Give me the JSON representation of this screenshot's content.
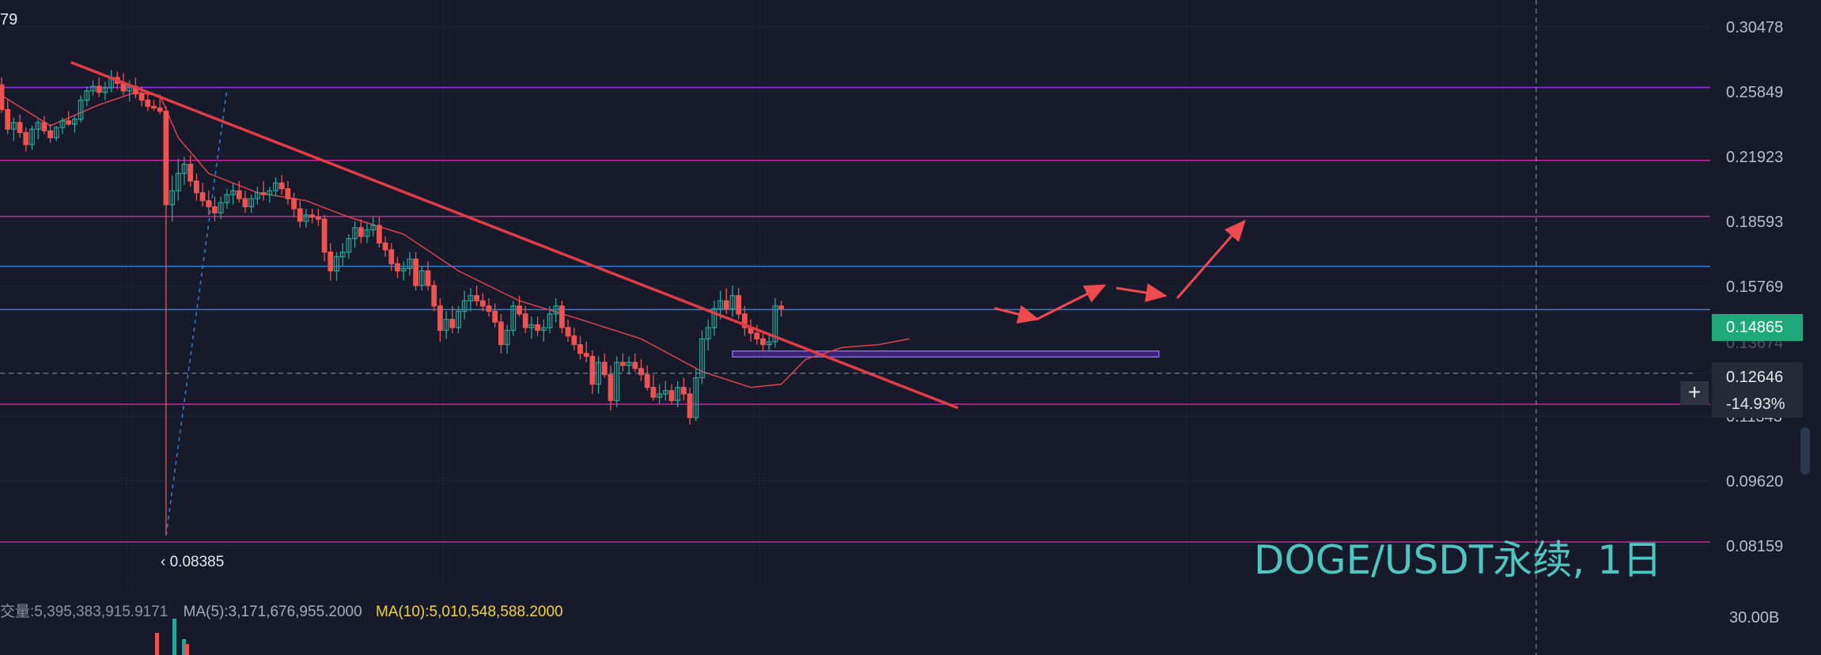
{
  "pair_title": "DOGE/USDT永续, 1日",
  "top_left_fragment": "79",
  "price_axis": {
    "labels": [
      "0.30478",
      "0.25849",
      "0.21923",
      "0.18593",
      "0.15769",
      "0.14865",
      "0.12646",
      "0.11343",
      "0.09620",
      "0.08159"
    ],
    "current_price": "0.14865",
    "cursor_price": "0.12646",
    "cursor_change": "-14.93%",
    "partial_hidden_label": "0.13674"
  },
  "min_marker": "0.08385",
  "volume": {
    "total_label": "交量:5,395,383,915.9171",
    "ma5_label": "MA(5):3,171,676,955.2000",
    "ma10_label": "MA(10):5,010,548,588.2000",
    "axis_label": "30.00B"
  },
  "colors": {
    "background": "#161a2b",
    "bull": "#26a69a",
    "bear": "#ef5350",
    "trendline": "#e23b45",
    "ma_line": "#e0424d",
    "current_tag": "#1fa97a",
    "watermark": "#4ec6bf",
    "level_purple": "#8e33e6",
    "level_magenta": "#c9249a",
    "level_blue": "#2f7fd6"
  },
  "chart_data": {
    "type": "candlestick",
    "title": "DOGE/USDT永续, 1日",
    "ylim": [
      0.0738,
      0.3262
    ],
    "scale": "log",
    "grid": true,
    "horizontal_levels": [
      {
        "value": 0.2613,
        "color": "purple"
      },
      {
        "value": 0.2171,
        "color": "magenta"
      },
      {
        "value": 0.1883,
        "color": "magenta"
      },
      {
        "value": 0.1659,
        "color": "blue"
      },
      {
        "value": 0.14865,
        "color": "blue"
      },
      {
        "value": 0.1169,
        "color": "magenta"
      },
      {
        "value": 0.0824,
        "color": "magenta"
      }
    ],
    "support_zone": {
      "low": 0.1318,
      "high": 0.1338,
      "x_start": 120,
      "x_end": 190
    },
    "trendline": {
      "x1": 1,
      "y1": 0.2785,
      "x2": 157,
      "y2": 0.1158
    },
    "fib_line": {
      "x1": 27,
      "y1": 0.0838,
      "x2": 37,
      "y2": 0.26
    },
    "min_marker": {
      "x": 27,
      "value": 0.08385
    },
    "projection_arrows": [
      {
        "x1": 163,
        "y1": 0.1492,
        "x2": 170,
        "y2": 0.1451
      },
      {
        "x1": 170,
        "y1": 0.1451,
        "x2": 181,
        "y2": 0.158
      },
      {
        "x1": 183,
        "y1": 0.157,
        "x2": 191,
        "y2": 0.154
      },
      {
        "x1": 193,
        "y1": 0.153,
        "x2": 204,
        "y2": 0.1859
      }
    ],
    "ohlc": [
      [
        0.263,
        0.268,
        0.245,
        0.247
      ],
      [
        0.247,
        0.253,
        0.232,
        0.235
      ],
      [
        0.235,
        0.242,
        0.228,
        0.239
      ],
      [
        0.239,
        0.244,
        0.23,
        0.233
      ],
      [
        0.233,
        0.236,
        0.222,
        0.226
      ],
      [
        0.226,
        0.237,
        0.223,
        0.235
      ],
      [
        0.235,
        0.241,
        0.229,
        0.239
      ],
      [
        0.239,
        0.243,
        0.232,
        0.234
      ],
      [
        0.234,
        0.238,
        0.227,
        0.23
      ],
      [
        0.23,
        0.237,
        0.228,
        0.236
      ],
      [
        0.236,
        0.242,
        0.232,
        0.24
      ],
      [
        0.24,
        0.246,
        0.237,
        0.238
      ],
      [
        0.238,
        0.243,
        0.233,
        0.241
      ],
      [
        0.241,
        0.256,
        0.239,
        0.253
      ],
      [
        0.253,
        0.262,
        0.249,
        0.259
      ],
      [
        0.259,
        0.266,
        0.256,
        0.262
      ],
      [
        0.262,
        0.268,
        0.255,
        0.258
      ],
      [
        0.258,
        0.265,
        0.253,
        0.261
      ],
      [
        0.261,
        0.273,
        0.258,
        0.268
      ],
      [
        0.268,
        0.272,
        0.26,
        0.264
      ],
      [
        0.264,
        0.271,
        0.256,
        0.259
      ],
      [
        0.259,
        0.266,
        0.252,
        0.262
      ],
      [
        0.262,
        0.268,
        0.254,
        0.257
      ],
      [
        0.257,
        0.262,
        0.249,
        0.253
      ],
      [
        0.253,
        0.259,
        0.246,
        0.249
      ],
      [
        0.249,
        0.253,
        0.246,
        0.248
      ],
      [
        0.248,
        0.255,
        0.244,
        0.246
      ],
      [
        0.246,
        0.249,
        0.0838,
        0.194
      ],
      [
        0.194,
        0.209,
        0.186,
        0.201
      ],
      [
        0.201,
        0.218,
        0.196,
        0.21
      ],
      [
        0.21,
        0.219,
        0.204,
        0.215
      ],
      [
        0.215,
        0.22,
        0.203,
        0.206
      ],
      [
        0.206,
        0.21,
        0.196,
        0.2
      ],
      [
        0.2,
        0.205,
        0.193,
        0.196
      ],
      [
        0.196,
        0.201,
        0.189,
        0.193
      ],
      [
        0.193,
        0.198,
        0.186,
        0.19
      ],
      [
        0.19,
        0.198,
        0.187,
        0.195
      ],
      [
        0.195,
        0.202,
        0.192,
        0.199
      ],
      [
        0.199,
        0.205,
        0.194,
        0.201
      ],
      [
        0.201,
        0.206,
        0.195,
        0.197
      ],
      [
        0.197,
        0.201,
        0.19,
        0.193
      ],
      [
        0.193,
        0.199,
        0.19,
        0.197
      ],
      [
        0.197,
        0.203,
        0.194,
        0.2
      ],
      [
        0.2,
        0.206,
        0.196,
        0.199
      ],
      [
        0.199,
        0.203,
        0.195,
        0.201
      ],
      [
        0.201,
        0.208,
        0.198,
        0.205
      ],
      [
        0.205,
        0.209,
        0.199,
        0.202
      ],
      [
        0.202,
        0.206,
        0.194,
        0.197
      ],
      [
        0.197,
        0.2,
        0.188,
        0.192
      ],
      [
        0.192,
        0.196,
        0.183,
        0.186
      ],
      [
        0.186,
        0.192,
        0.183,
        0.189
      ],
      [
        0.189,
        0.192,
        0.185,
        0.188
      ],
      [
        0.188,
        0.192,
        0.184,
        0.187
      ],
      [
        0.187,
        0.189,
        0.168,
        0.172
      ],
      [
        0.172,
        0.176,
        0.16,
        0.164
      ],
      [
        0.164,
        0.172,
        0.16,
        0.17
      ],
      [
        0.17,
        0.176,
        0.166,
        0.172
      ],
      [
        0.172,
        0.18,
        0.169,
        0.178
      ],
      [
        0.178,
        0.186,
        0.174,
        0.183
      ],
      [
        0.183,
        0.187,
        0.176,
        0.179
      ],
      [
        0.179,
        0.185,
        0.176,
        0.182
      ],
      [
        0.182,
        0.188,
        0.179,
        0.184
      ],
      [
        0.184,
        0.188,
        0.174,
        0.176
      ],
      [
        0.176,
        0.179,
        0.17,
        0.173
      ],
      [
        0.173,
        0.176,
        0.164,
        0.167
      ],
      [
        0.167,
        0.17,
        0.161,
        0.164
      ],
      [
        0.164,
        0.168,
        0.16,
        0.165
      ],
      [
        0.165,
        0.172,
        0.162,
        0.169
      ],
      [
        0.169,
        0.172,
        0.156,
        0.158
      ],
      [
        0.158,
        0.166,
        0.156,
        0.164
      ],
      [
        0.164,
        0.168,
        0.156,
        0.158
      ],
      [
        0.158,
        0.16,
        0.148,
        0.15
      ],
      [
        0.15,
        0.153,
        0.137,
        0.141
      ],
      [
        0.141,
        0.148,
        0.138,
        0.145
      ],
      [
        0.145,
        0.15,
        0.14,
        0.142
      ],
      [
        0.142,
        0.15,
        0.14,
        0.148
      ],
      [
        0.148,
        0.156,
        0.145,
        0.152
      ],
      [
        0.152,
        0.157,
        0.148,
        0.154
      ],
      [
        0.154,
        0.158,
        0.15,
        0.152
      ],
      [
        0.152,
        0.155,
        0.148,
        0.15
      ],
      [
        0.15,
        0.153,
        0.146,
        0.148
      ],
      [
        0.148,
        0.151,
        0.142,
        0.144
      ],
      [
        0.144,
        0.147,
        0.133,
        0.136
      ],
      [
        0.136,
        0.143,
        0.133,
        0.141
      ],
      [
        0.141,
        0.152,
        0.139,
        0.15
      ],
      [
        0.15,
        0.154,
        0.146,
        0.147
      ],
      [
        0.147,
        0.15,
        0.14,
        0.142
      ],
      [
        0.142,
        0.146,
        0.138,
        0.143
      ],
      [
        0.143,
        0.146,
        0.139,
        0.141
      ],
      [
        0.141,
        0.145,
        0.137,
        0.142
      ],
      [
        0.142,
        0.15,
        0.14,
        0.147
      ],
      [
        0.147,
        0.153,
        0.144,
        0.15
      ],
      [
        0.15,
        0.152,
        0.14,
        0.142
      ],
      [
        0.142,
        0.145,
        0.137,
        0.139
      ],
      [
        0.139,
        0.142,
        0.134,
        0.136
      ],
      [
        0.136,
        0.139,
        0.131,
        0.133
      ],
      [
        0.133,
        0.137,
        0.13,
        0.132
      ],
      [
        0.132,
        0.134,
        0.12,
        0.123
      ],
      [
        0.123,
        0.132,
        0.12,
        0.13
      ],
      [
        0.13,
        0.133,
        0.125,
        0.126
      ],
      [
        0.126,
        0.129,
        0.115,
        0.118
      ],
      [
        0.118,
        0.132,
        0.116,
        0.13
      ],
      [
        0.13,
        0.133,
        0.127,
        0.129
      ],
      [
        0.129,
        0.132,
        0.126,
        0.13
      ],
      [
        0.13,
        0.133,
        0.127,
        0.128
      ],
      [
        0.128,
        0.131,
        0.124,
        0.126
      ],
      [
        0.126,
        0.129,
        0.121,
        0.122
      ],
      [
        0.122,
        0.126,
        0.118,
        0.119
      ],
      [
        0.119,
        0.123,
        0.117,
        0.12
      ],
      [
        0.12,
        0.124,
        0.118,
        0.121
      ],
      [
        0.121,
        0.123,
        0.117,
        0.118
      ],
      [
        0.118,
        0.124,
        0.116,
        0.122
      ],
      [
        0.122,
        0.125,
        0.118,
        0.12
      ],
      [
        0.12,
        0.122,
        0.111,
        0.113
      ],
      [
        0.113,
        0.128,
        0.112,
        0.125
      ],
      [
        0.125,
        0.141,
        0.123,
        0.138
      ],
      [
        0.138,
        0.145,
        0.134,
        0.142
      ],
      [
        0.142,
        0.152,
        0.139,
        0.149
      ],
      [
        0.149,
        0.156,
        0.145,
        0.152
      ],
      [
        0.152,
        0.157,
        0.147,
        0.149
      ],
      [
        0.149,
        0.158,
        0.146,
        0.154
      ],
      [
        0.154,
        0.157,
        0.145,
        0.147
      ],
      [
        0.147,
        0.15,
        0.139,
        0.142
      ],
      [
        0.142,
        0.145,
        0.137,
        0.14
      ],
      [
        0.14,
        0.143,
        0.136,
        0.138
      ],
      [
        0.138,
        0.141,
        0.134,
        0.136
      ],
      [
        0.136,
        0.14,
        0.134,
        0.137
      ],
      [
        0.137,
        0.153,
        0.135,
        0.15
      ],
      [
        0.15,
        0.152,
        0.146,
        0.149
      ]
    ],
    "ma_line": [
      [
        0,
        0.256
      ],
      [
        8,
        0.237
      ],
      [
        16,
        0.25
      ],
      [
        22,
        0.258
      ],
      [
        26,
        0.256
      ],
      [
        29,
        0.23
      ],
      [
        34,
        0.21
      ],
      [
        42,
        0.2
      ],
      [
        50,
        0.196
      ],
      [
        57,
        0.188
      ],
      [
        66,
        0.18
      ],
      [
        75,
        0.164
      ],
      [
        85,
        0.152
      ],
      [
        95,
        0.145
      ],
      [
        105,
        0.138
      ],
      [
        115,
        0.127
      ],
      [
        123,
        0.122
      ],
      [
        128,
        0.123
      ],
      [
        132,
        0.131
      ],
      [
        138,
        0.135
      ],
      [
        144,
        0.136
      ],
      [
        149,
        0.138
      ]
    ]
  }
}
